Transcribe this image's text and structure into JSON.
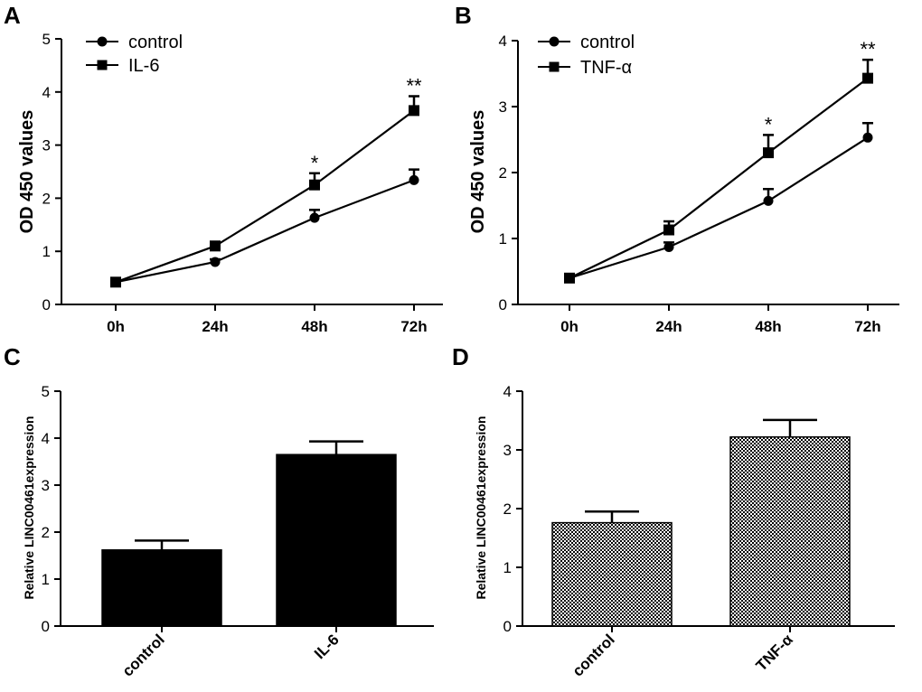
{
  "chart_data": [
    {
      "panel": "A",
      "type": "line",
      "ylabel": "OD 450 values",
      "xlabel": "",
      "categories": [
        "0h",
        "24h",
        "48h",
        "72h"
      ],
      "ylim": [
        0,
        5
      ],
      "yticks": [
        0,
        1,
        2,
        3,
        4,
        5
      ],
      "series": [
        {
          "name": "control",
          "marker": "circle",
          "values": [
            0.42,
            0.8,
            1.63,
            2.34
          ],
          "errors": [
            0.04,
            0.05,
            0.15,
            0.2
          ]
        },
        {
          "name": "IL-6",
          "marker": "square",
          "values": [
            0.42,
            1.1,
            2.25,
            3.65
          ],
          "errors": [
            0.04,
            0.08,
            0.22,
            0.27
          ]
        }
      ],
      "annotations": [
        {
          "category": "48h",
          "text": "*"
        },
        {
          "category": "72h",
          "text": "**"
        }
      ]
    },
    {
      "panel": "B",
      "type": "line",
      "ylabel": "OD 450 values",
      "xlabel": "",
      "categories": [
        "0h",
        "24h",
        "48h",
        "72h"
      ],
      "ylim": [
        0,
        4
      ],
      "yticks": [
        0,
        1,
        2,
        3,
        4
      ],
      "series": [
        {
          "name": "control",
          "marker": "circle",
          "values": [
            0.4,
            0.87,
            1.57,
            2.53
          ],
          "errors": [
            0.03,
            0.07,
            0.18,
            0.22
          ]
        },
        {
          "name": "TNF-α",
          "marker": "square",
          "values": [
            0.4,
            1.13,
            2.3,
            3.43
          ],
          "errors": [
            0.03,
            0.13,
            0.27,
            0.28
          ]
        }
      ],
      "annotations": [
        {
          "category": "48h",
          "text": "*"
        },
        {
          "category": "72h",
          "text": "**"
        }
      ]
    },
    {
      "panel": "C",
      "type": "bar",
      "ylabel": "Relative LINC00461expression",
      "xlabel": "",
      "categories": [
        "control",
        "IL-6"
      ],
      "values": [
        1.62,
        3.65
      ],
      "errors": [
        0.2,
        0.28
      ],
      "fill": "solid",
      "ylim": [
        0,
        5
      ],
      "yticks": [
        0,
        1,
        2,
        3,
        4,
        5
      ]
    },
    {
      "panel": "D",
      "type": "bar",
      "ylabel": "Relative LINC00461expression",
      "xlabel": "",
      "categories": [
        "control",
        "TNF-α"
      ],
      "values": [
        1.76,
        3.22
      ],
      "errors": [
        0.19,
        0.29
      ],
      "fill": "checkered",
      "ylim": [
        0,
        4
      ],
      "yticks": [
        0,
        1,
        2,
        3,
        4
      ]
    }
  ]
}
